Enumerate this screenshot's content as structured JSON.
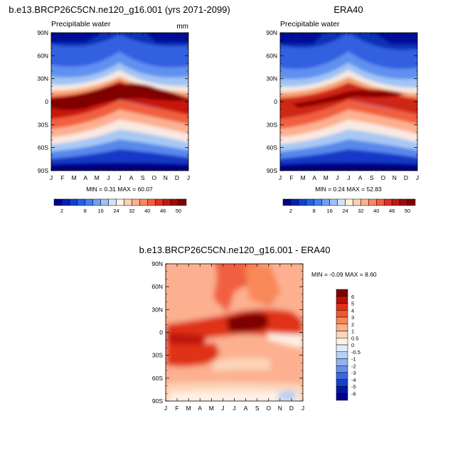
{
  "chart_data": [
    {
      "type": "heatmap",
      "title": "b.e13.BRCP26C5CN.ne120_g16.001 (yrs 2071-2099)",
      "left_label": "Precipitable water",
      "units": "mm",
      "x_ticks": [
        "J",
        "F",
        "M",
        "A",
        "M",
        "J",
        "J",
        "A",
        "S",
        "O",
        "N",
        "D",
        "J"
      ],
      "y_ticks": [
        "90N",
        "60N",
        "30N",
        "0",
        "30S",
        "60S",
        "90S"
      ],
      "stats": "MIN =  0.31  MAX =  60.07",
      "min": 0.31,
      "max": 60.07,
      "colorbar_ticks": [
        "2",
        "8",
        "16",
        "24",
        "32",
        "40",
        "46",
        "50"
      ],
      "colorbar_levels": [
        2,
        4,
        6,
        8,
        12,
        16,
        20,
        24,
        28,
        32,
        36,
        40,
        44,
        46,
        48,
        50
      ],
      "colors": [
        "#000090",
        "#0020b0",
        "#1040d0",
        "#2060e8",
        "#4080f0",
        "#70a0f0",
        "#a0c0f0",
        "#d0e4f8",
        "#fff0e0",
        "#fdd0b0",
        "#fcb090",
        "#f88860",
        "#f06040",
        "#e03020",
        "#c01810",
        "#a00808",
        "#800000"
      ]
    },
    {
      "type": "heatmap",
      "title": "ERA40",
      "left_label": "Precipitable water",
      "x_ticks": [
        "J",
        "F",
        "M",
        "A",
        "M",
        "J",
        "J",
        "A",
        "S",
        "O",
        "N",
        "D",
        "J"
      ],
      "y_ticks": [
        "90N",
        "60N",
        "30N",
        "0",
        "30S",
        "60S",
        "90S"
      ],
      "stats": "MIN =  0.24  MAX =  52.83",
      "min": 0.24,
      "max": 52.83,
      "colorbar_ticks": [
        "2",
        "8",
        "16",
        "24",
        "32",
        "40",
        "46",
        "50"
      ]
    },
    {
      "type": "heatmap",
      "title": "b.e13.BRCP26C5CN.ne120_g16.001 - ERA40",
      "x_ticks": [
        "J",
        "F",
        "M",
        "A",
        "M",
        "J",
        "J",
        "A",
        "S",
        "O",
        "N",
        "D",
        "J"
      ],
      "y_ticks": [
        "90N",
        "60N",
        "30N",
        "0",
        "30S",
        "60S",
        "90S"
      ],
      "stats": "MIN = -0.09  MAX =   8.60",
      "min": -0.09,
      "max": 8.6,
      "colorbar_labels": [
        "6",
        "5",
        "4",
        "3",
        "2",
        "1",
        "0.5",
        "0",
        "-0.5",
        "-1",
        "-2",
        "-3",
        "-4",
        "-5",
        "-6"
      ],
      "colors": [
        "#800000",
        "#b81008",
        "#e03018",
        "#f05830",
        "#f88858",
        "#fcb088",
        "#fdd4b8",
        "#fff0e4",
        "#e0ecfc",
        "#b8d0f8",
        "#90b4f0",
        "#6890e8",
        "#3c68e0",
        "#1840c8",
        "#0018a8",
        "#000088"
      ]
    }
  ]
}
